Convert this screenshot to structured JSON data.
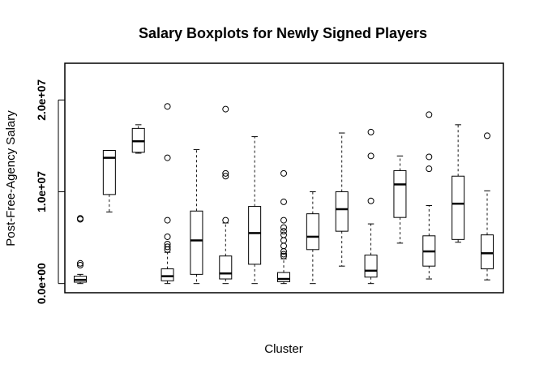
{
  "chart_data": {
    "type": "boxplot",
    "title": "Salary Boxplots for Newly Signed Players",
    "xlabel": "Cluster",
    "ylabel": "Post-Free-Agency Salary",
    "ylim": [
      -1000000,
      24000000
    ],
    "yticks": [
      {
        "value": 0,
        "label": "0.0e+00"
      },
      {
        "value": 10000000,
        "label": "1.0e+07"
      },
      {
        "value": 20000000,
        "label": "2.0e+07"
      }
    ],
    "show_x_tick_labels": false,
    "grid": false,
    "boxes": [
      {
        "whisker_low": 0,
        "q1": 150000,
        "median": 400000,
        "q3": 800000,
        "whisker_high": 1000000,
        "outliers": [
          2000000,
          2200000,
          7000000,
          7100000
        ]
      },
      {
        "whisker_low": 7800000,
        "q1": 9700000,
        "median": 13700000,
        "q3": 14500000,
        "whisker_high": 14500000,
        "outliers": []
      },
      {
        "whisker_low": 14200000,
        "q1": 14300000,
        "median": 15500000,
        "q3": 16900000,
        "whisker_high": 17300000,
        "outliers": []
      },
      {
        "whisker_low": 0,
        "q1": 300000,
        "median": 800000,
        "q3": 1600000,
        "whisker_high": 3400000,
        "outliers": [
          3700000,
          4000000,
          4300000,
          5100000,
          6900000,
          13700000,
          19300000
        ]
      },
      {
        "whisker_low": 0,
        "q1": 1000000,
        "median": 4700000,
        "q3": 7900000,
        "whisker_high": 14600000,
        "outliers": []
      },
      {
        "whisker_low": 0,
        "q1": 500000,
        "median": 1100000,
        "q3": 3000000,
        "whisker_high": 6600000,
        "outliers": [
          6900000,
          11700000,
          12000000,
          19000000
        ]
      },
      {
        "whisker_low": 0,
        "q1": 2100000,
        "median": 5500000,
        "q3": 8400000,
        "whisker_high": 16000000,
        "outliers": []
      },
      {
        "whisker_low": 0,
        "q1": 200000,
        "median": 500000,
        "q3": 1200000,
        "whisker_high": 2700000,
        "outliers": [
          3000000,
          3200000,
          3500000,
          4100000,
          4700000,
          5300000,
          5700000,
          6100000,
          6900000,
          8900000,
          12000000
        ]
      },
      {
        "whisker_low": 0,
        "q1": 3700000,
        "median": 5100000,
        "q3": 7600000,
        "whisker_high": 10000000,
        "outliers": []
      },
      {
        "whisker_low": 1900000,
        "q1": 5700000,
        "median": 8100000,
        "q3": 10000000,
        "whisker_high": 16400000,
        "outliers": []
      },
      {
        "whisker_low": 0,
        "q1": 700000,
        "median": 1400000,
        "q3": 3100000,
        "whisker_high": 6500000,
        "outliers": [
          9000000,
          13900000,
          16500000
        ]
      },
      {
        "whisker_low": 4400000,
        "q1": 7200000,
        "median": 10800000,
        "q3": 12300000,
        "whisker_high": 13900000,
        "outliers": []
      },
      {
        "whisker_low": 500000,
        "q1": 1900000,
        "median": 3500000,
        "q3": 5200000,
        "whisker_high": 8500000,
        "outliers": [
          12500000,
          13800000,
          18400000
        ]
      },
      {
        "whisker_low": 4500000,
        "q1": 4800000,
        "median": 8700000,
        "q3": 11700000,
        "whisker_high": 17300000,
        "outliers": []
      },
      {
        "whisker_low": 400000,
        "q1": 1600000,
        "median": 3300000,
        "q3": 5300000,
        "whisker_high": 10100000,
        "outliers": [
          16100000
        ]
      }
    ]
  }
}
